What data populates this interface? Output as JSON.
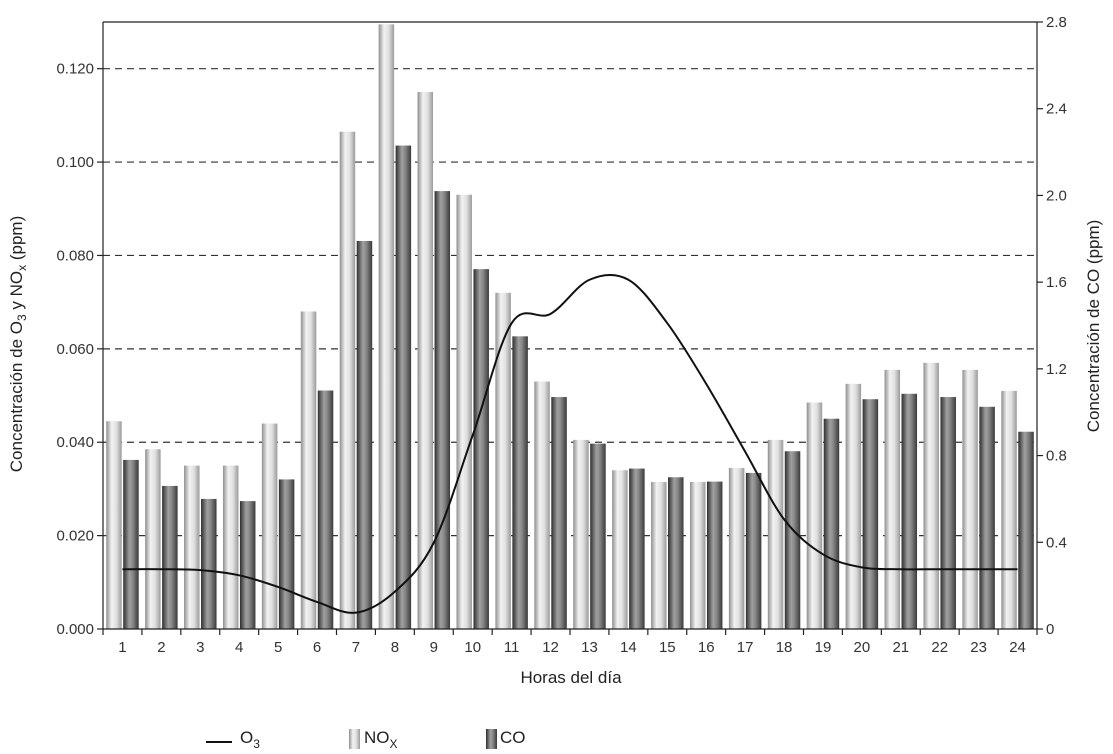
{
  "chart_data": {
    "type": "bar",
    "categories": [
      "1",
      "2",
      "3",
      "4",
      "5",
      "6",
      "7",
      "8",
      "9",
      "10",
      "11",
      "12",
      "13",
      "14",
      "15",
      "16",
      "17",
      "18",
      "19",
      "20",
      "21",
      "22",
      "23",
      "24"
    ],
    "xlabel": "Horas del día",
    "ylabel_left": {
      "main": "Concentración de O",
      "sub1": "3",
      "mid": " y NO",
      "sub2": "x",
      "end": " (ppm)"
    },
    "ylabel_right": "Concentración de CO (ppm)",
    "ylim_left": [
      0,
      0.13
    ],
    "ylim_right": [
      0,
      2.8
    ],
    "left_ticks": [
      "0.000",
      "0.020",
      "0.040",
      "0.060",
      "0.080",
      "0.100",
      "0.120"
    ],
    "right_ticks": [
      "0",
      "0.4",
      "0.8",
      "1.2",
      "1.6",
      "2.0",
      "2.4",
      "2.8"
    ],
    "grid": "dashed horizontal at left-axis ticks",
    "legend_position": "bottom",
    "series": [
      {
        "name": "NO",
        "sub": "X",
        "axis": "left",
        "kind": "bar",
        "color": "#b8b8b8",
        "values": [
          0.0445,
          0.0385,
          0.035,
          0.035,
          0.044,
          0.068,
          0.1065,
          0.1295,
          0.115,
          0.093,
          0.072,
          0.053,
          0.0405,
          0.034,
          0.0315,
          0.0315,
          0.0345,
          0.0405,
          0.0485,
          0.0525,
          0.0555,
          0.057,
          0.0555,
          0.051
        ]
      },
      {
        "name": "CO",
        "sub": "",
        "axis": "right",
        "kind": "bar",
        "color": "#6e6e6e",
        "values": [
          0.78,
          0.66,
          0.6,
          0.59,
          0.69,
          1.1,
          1.79,
          2.23,
          2.02,
          1.66,
          1.35,
          1.07,
          0.855,
          0.74,
          0.7,
          0.68,
          0.72,
          0.82,
          0.97,
          1.06,
          1.085,
          1.07,
          1.025,
          0.91
        ]
      },
      {
        "name": "O",
        "sub": "3",
        "axis": "left",
        "kind": "line",
        "color": "#111111",
        "values": [
          0.0128,
          0.0128,
          0.0126,
          0.0115,
          0.009,
          0.0058,
          0.0035,
          0.008,
          0.0185,
          0.0415,
          0.0655,
          0.0675,
          0.0748,
          0.0748,
          0.0655,
          0.0525,
          0.038,
          0.0235,
          0.016,
          0.0132,
          0.0128,
          0.0128,
          0.0128,
          0.0128
        ]
      }
    ]
  }
}
